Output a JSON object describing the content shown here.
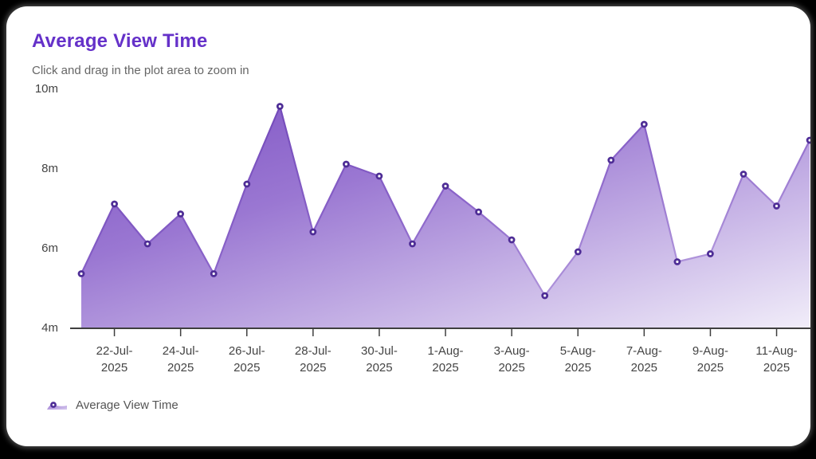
{
  "page": {
    "background": "#000000"
  },
  "card": {
    "background": "#ffffff"
  },
  "header": {
    "title": "Average View Time",
    "subtitle": "Click and drag in the plot area to zoom in"
  },
  "legend": {
    "label": "Average View Time"
  },
  "colors": {
    "title": "#6531c9",
    "subtitle": "#666666",
    "axis_label": "#444444",
    "axis_line": "#3f3f3f",
    "area_gradient_start": "#7e53c4",
    "area_gradient_mid": "#9a77d2",
    "area_gradient_end": "#f1edf9",
    "line_gradient_start": "#6b41b4",
    "line_gradient_mid": "#8a63c9",
    "line_gradient_end": "#c3aee4",
    "marker_ring": "#4e2d96",
    "marker_center": "#ffffff",
    "legend_text": "#555555"
  },
  "chart_data": {
    "type": "area",
    "title": "Average View Time",
    "subtitle": "Click and drag in the plot area to zoom in",
    "unit": "minutes",
    "x": [
      "21-Jul-2025",
      "22-Jul-2025",
      "23-Jul-2025",
      "24-Jul-2025",
      "25-Jul-2025",
      "26-Jul-2025",
      "27-Jul-2025",
      "28-Jul-2025",
      "29-Jul-2025",
      "30-Jul-2025",
      "31-Jul-2025",
      "1-Aug-2025",
      "2-Aug-2025",
      "3-Aug-2025",
      "4-Aug-2025",
      "5-Aug-2025",
      "6-Aug-2025",
      "7-Aug-2025",
      "8-Aug-2025",
      "9-Aug-2025",
      "10-Aug-2025",
      "11-Aug-2025",
      "12-Aug-2025"
    ],
    "series": [
      {
        "name": "Average View Time",
        "values": [
          5.35,
          7.1,
          6.1,
          6.85,
          5.35,
          7.6,
          9.55,
          6.4,
          8.1,
          7.8,
          6.1,
          7.55,
          6.9,
          6.2,
          4.8,
          5.9,
          8.2,
          9.1,
          5.65,
          5.85,
          7.85,
          7.05,
          8.7
        ]
      }
    ],
    "ylim": [
      4,
      10
    ],
    "yticks": [
      {
        "value": 10,
        "label": "10m"
      },
      {
        "value": 8,
        "label": "8m"
      },
      {
        "value": 6,
        "label": "6m"
      },
      {
        "value": 4,
        "label": "4m"
      }
    ],
    "xticks": [
      {
        "point_index": 1,
        "line1": "22-Jul-",
        "line2": "2025"
      },
      {
        "point_index": 3,
        "line1": "24-Jul-",
        "line2": "2025"
      },
      {
        "point_index": 5,
        "line1": "26-Jul-",
        "line2": "2025"
      },
      {
        "point_index": 7,
        "line1": "28-Jul-",
        "line2": "2025"
      },
      {
        "point_index": 9,
        "line1": "30-Jul-",
        "line2": "2025"
      },
      {
        "point_index": 11,
        "line1": "1-Aug-",
        "line2": "2025"
      },
      {
        "point_index": 13,
        "line1": "3-Aug-",
        "line2": "2025"
      },
      {
        "point_index": 15,
        "line1": "5-Aug-",
        "line2": "2025"
      },
      {
        "point_index": 17,
        "line1": "7-Aug-",
        "line2": "2025"
      },
      {
        "point_index": 19,
        "line1": "9-Aug-",
        "line2": "2025"
      },
      {
        "point_index": 21,
        "line1": "11-Aug-",
        "line2": "2025"
      }
    ],
    "grid": false,
    "legend_position": "bottom-left"
  }
}
